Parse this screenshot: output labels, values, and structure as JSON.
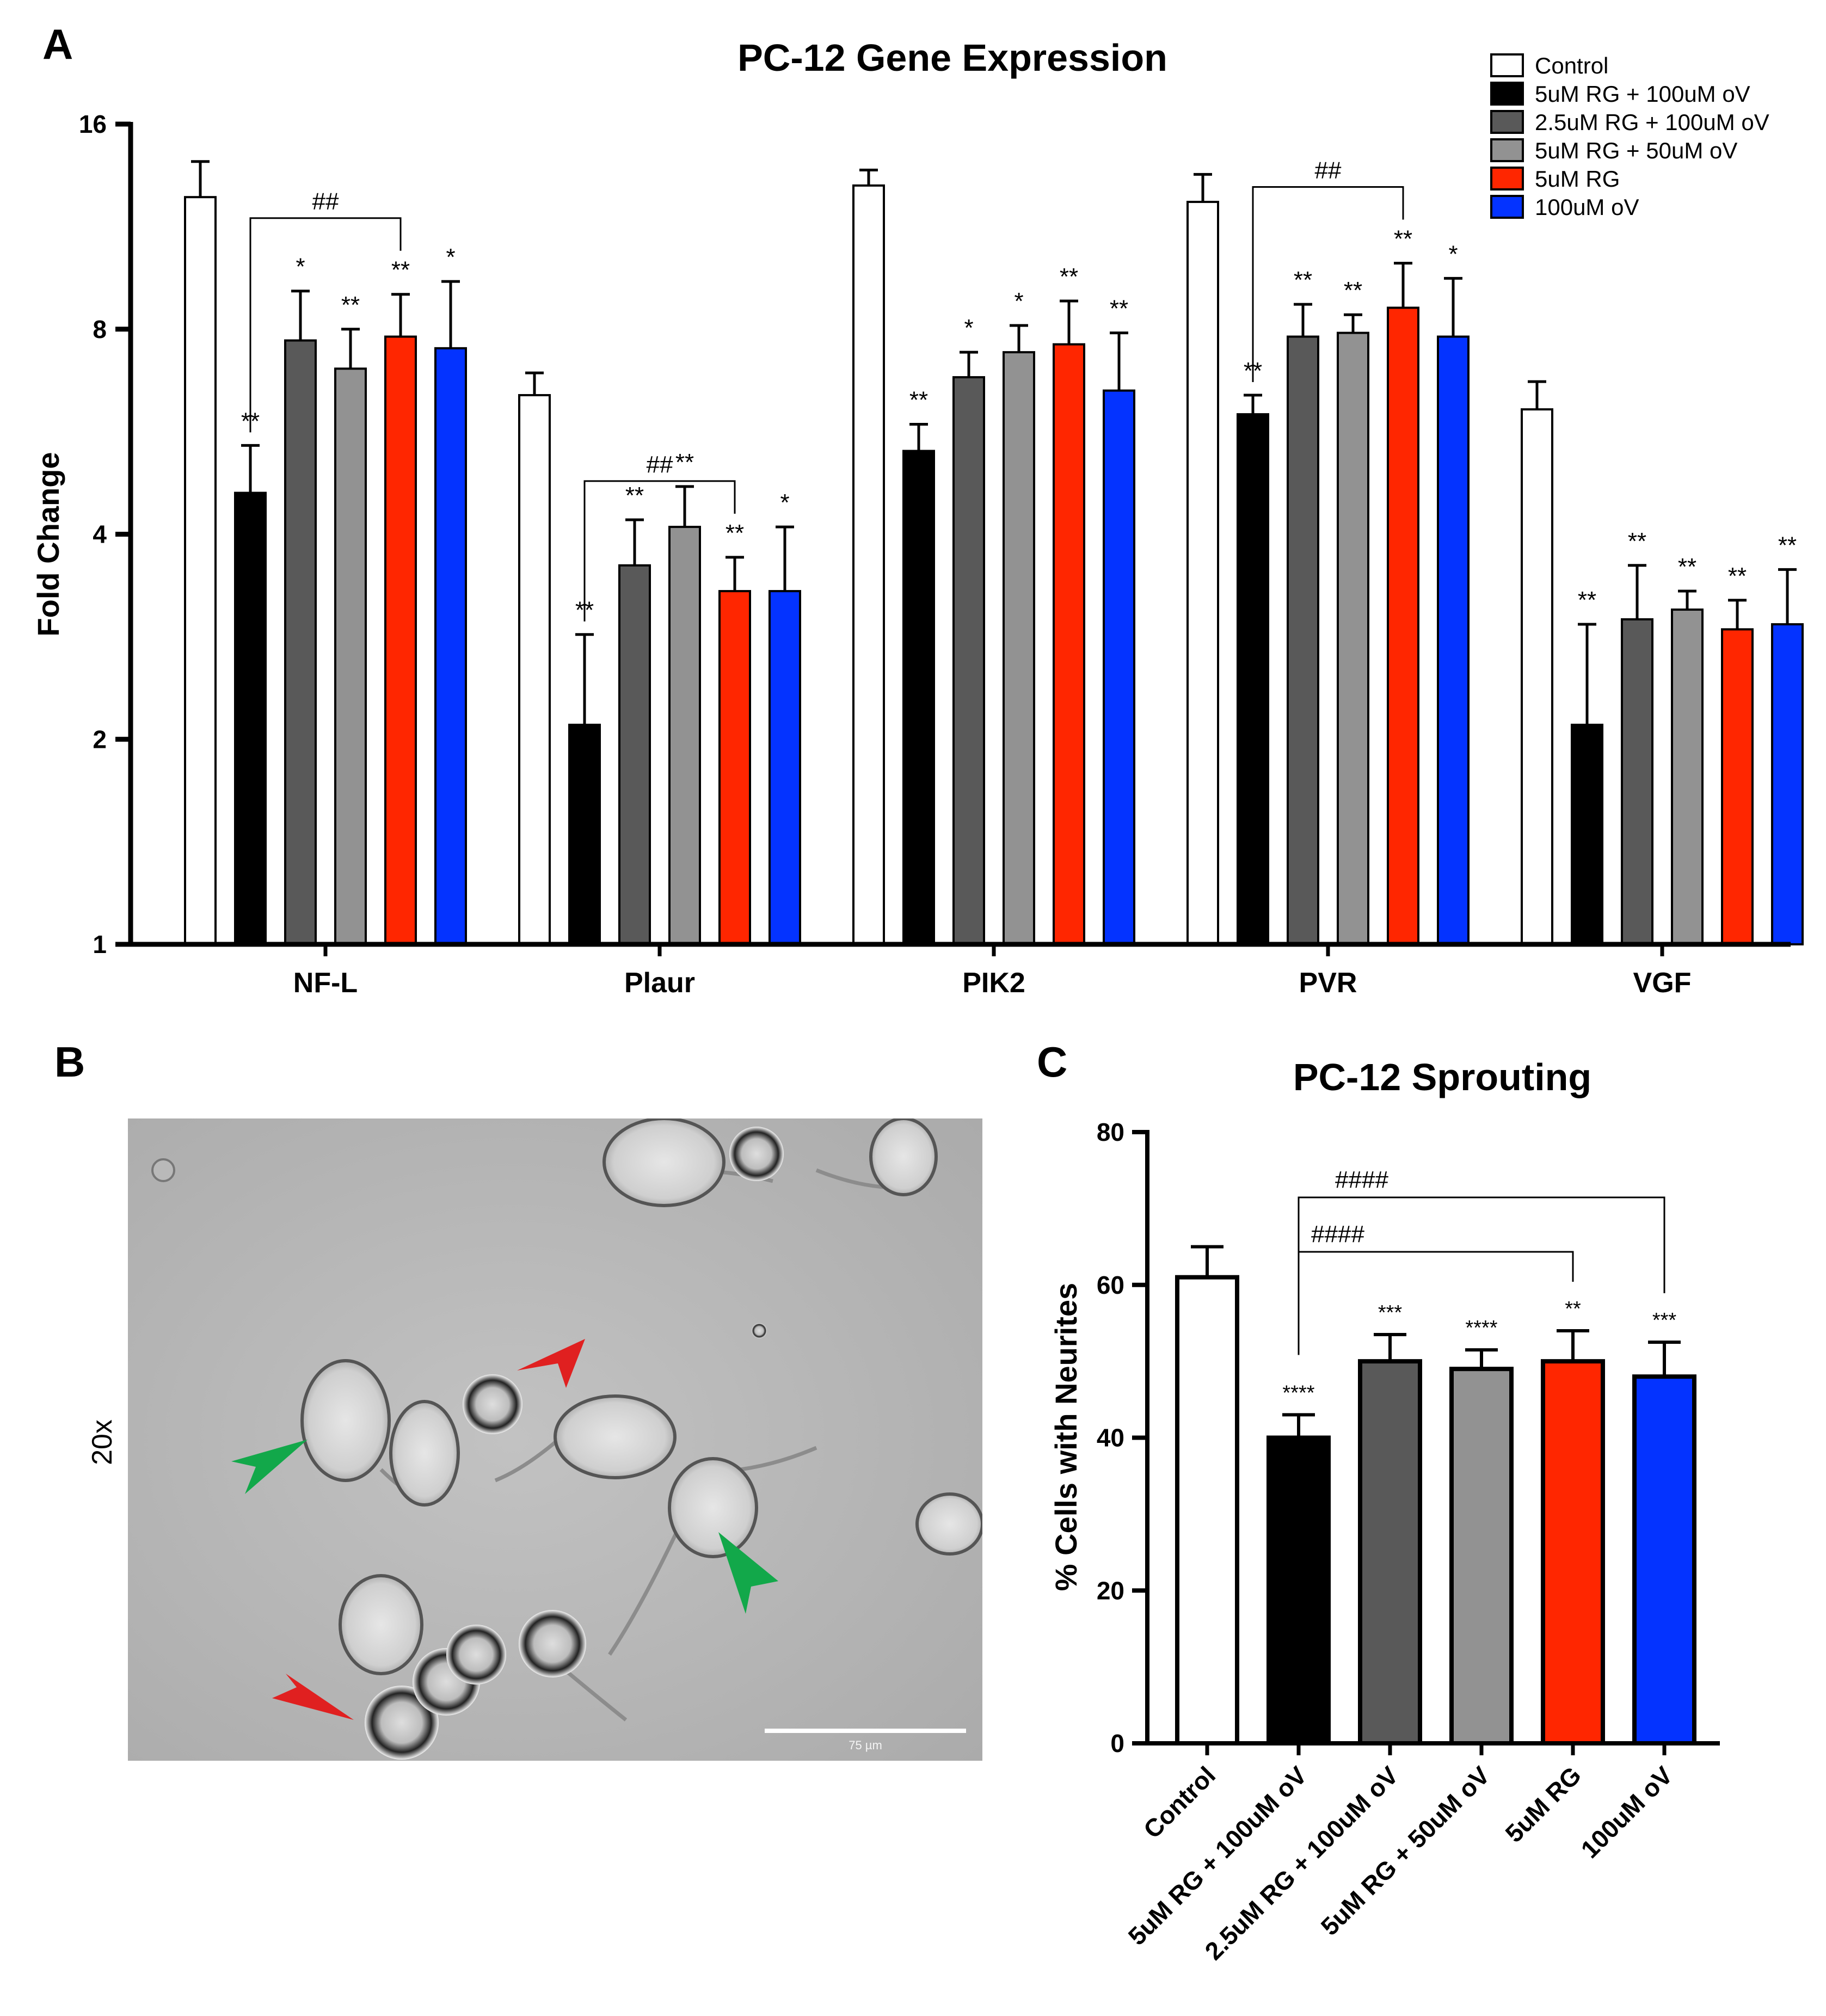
{
  "panelA": {
    "letter": "A",
    "chart_data": {
      "type": "bar",
      "title": "PC-12 Gene Expression",
      "xlabel": "",
      "ylabel": "Fold Change",
      "yscale": "log2",
      "ylim": [
        1,
        16
      ],
      "yticks": [
        1,
        2,
        4,
        8,
        16
      ],
      "ytick_labels": [
        "1",
        "2",
        "4",
        "8",
        "16"
      ],
      "categories": [
        "NF-L",
        "Plaur",
        "PIK2",
        "PVR",
        "VGF"
      ],
      "legend_position": "top-right",
      "series": [
        {
          "name": "Control",
          "color": "#ffffff",
          "values": [
            12.5,
            6.4,
            13.0,
            12.3,
            6.1
          ],
          "errors": [
            1.6,
            0.5,
            0.7,
            1.2,
            0.6
          ],
          "sig": [
            "",
            "",
            "",
            "",
            ""
          ]
        },
        {
          "name": "5uM RG + 100uM oV",
          "color": "#000000",
          "values": [
            4.6,
            2.1,
            5.3,
            6.0,
            2.1
          ],
          "errors": [
            0.8,
            0.75,
            0.5,
            0.4,
            0.85
          ],
          "sig": [
            "**",
            "**",
            "**",
            "**",
            "**"
          ]
        },
        {
          "name": "2.5uM RG + 100uM oV",
          "color": "#595959",
          "values": [
            7.7,
            3.6,
            6.8,
            7.8,
            3.0
          ],
          "errors": [
            1.4,
            0.6,
            0.6,
            0.9,
            0.6
          ],
          "sig": [
            "*",
            "**",
            "*",
            "**",
            "**"
          ]
        },
        {
          "name": "5uM RG + 50uM oV",
          "color": "#929292",
          "values": [
            7.0,
            4.1,
            7.4,
            7.9,
            3.1
          ],
          "errors": [
            1.0,
            0.6,
            0.7,
            0.5,
            0.2
          ],
          "sig": [
            "**",
            "**",
            "*",
            "**",
            "**"
          ]
        },
        {
          "name": "5uM RG",
          "color": "#ff2600",
          "values": [
            7.8,
            3.3,
            7.6,
            8.6,
            2.9
          ],
          "errors": [
            1.2,
            0.4,
            1.2,
            1.4,
            0.3
          ],
          "sig": [
            "**",
            "**",
            "**",
            "**",
            "**"
          ]
        },
        {
          "name": "100uM oV",
          "color": "#0433ff",
          "values": [
            7.5,
            3.3,
            6.5,
            7.8,
            2.95
          ],
          "errors": [
            1.9,
            0.8,
            1.4,
            1.7,
            0.6
          ],
          "sig": [
            "*",
            "*",
            "**",
            "*",
            "**"
          ]
        }
      ],
      "brackets": [
        {
          "category": 0,
          "from": 1,
          "to": 4,
          "label": "##"
        },
        {
          "category": 1,
          "from": 1,
          "to": 4,
          "label": "##"
        },
        {
          "category": 3,
          "from": 1,
          "to": 4,
          "label": "##"
        }
      ]
    }
  },
  "panelB": {
    "letter": "B",
    "magnification": "20x",
    "scale_bar_label": "75 µm"
  },
  "panelC": {
    "letter": "C",
    "chart_data": {
      "type": "bar",
      "title": "PC-12 Sprouting",
      "xlabel": "",
      "ylabel": "% Cells with Neurites",
      "ylim": [
        0,
        80
      ],
      "yticks": [
        0,
        20,
        40,
        60,
        80
      ],
      "categories": [
        "Control",
        "5uM RG + 100uM oV",
        "2.5uM RG + 100uM oV",
        "5uM RG + 50uM oV",
        "5uM RG",
        "100uM oV"
      ],
      "colors": [
        "#ffffff",
        "#000000",
        "#595959",
        "#929292",
        "#ff2600",
        "#0433ff"
      ],
      "values": [
        61,
        40,
        50,
        49,
        50,
        48
      ],
      "errors": [
        4,
        3,
        3.5,
        2.5,
        4,
        4.5
      ],
      "sig": [
        "",
        "****",
        "***",
        "****",
        "**",
        "***"
      ],
      "brackets": [
        {
          "from": 1,
          "to": 5,
          "label": "####"
        },
        {
          "from": 1,
          "to": 4,
          "label": "####"
        }
      ]
    }
  }
}
